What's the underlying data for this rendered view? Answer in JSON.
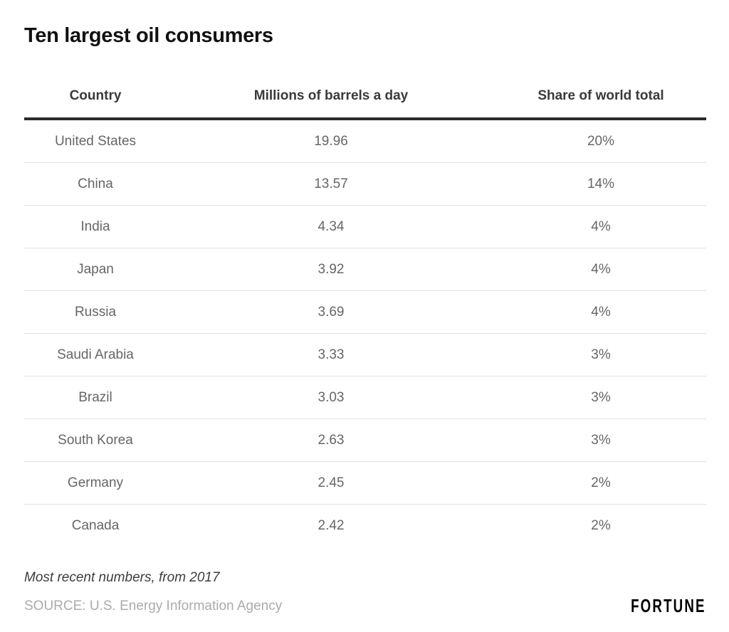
{
  "title": "Ten largest oil consumers",
  "chart_data": {
    "type": "table",
    "title": "Ten largest oil consumers",
    "columns": [
      "Country",
      "Millions of barrels a day",
      "Share of world total"
    ],
    "rows": [
      [
        "United States",
        "19.96",
        "20%"
      ],
      [
        "China",
        "13.57",
        "14%"
      ],
      [
        "India",
        "4.34",
        "4%"
      ],
      [
        "Japan",
        "3.92",
        "4%"
      ],
      [
        "Russia",
        "3.69",
        "4%"
      ],
      [
        "Saudi Arabia",
        "3.33",
        "3%"
      ],
      [
        "Brazil",
        "3.03",
        "3%"
      ],
      [
        "South Korea",
        "2.63",
        "3%"
      ],
      [
        "Germany",
        "2.45",
        "2%"
      ],
      [
        "Canada",
        "2.42",
        "2%"
      ]
    ],
    "note": "Most recent numbers, from 2017",
    "source": "SOURCE: U.S. Energy Information Agency",
    "layout": {
      "grid": "row-separators-only",
      "header_rule": "thick-dark",
      "alignment": "center"
    }
  },
  "footer": {
    "note": "Most recent numbers, from 2017",
    "source": "SOURCE: U.S. Energy Information Agency",
    "brand": "FORTUNE"
  },
  "colors": {
    "background": "#ffffff",
    "title_text": "#111111",
    "header_text": "#3a3a3a",
    "body_text": "#666666",
    "header_rule": "#2b2b2b",
    "row_separator": "#e0e0e0",
    "note_text": "#3d3d3d",
    "source_text": "#ababab",
    "brand_text": "#000000"
  }
}
